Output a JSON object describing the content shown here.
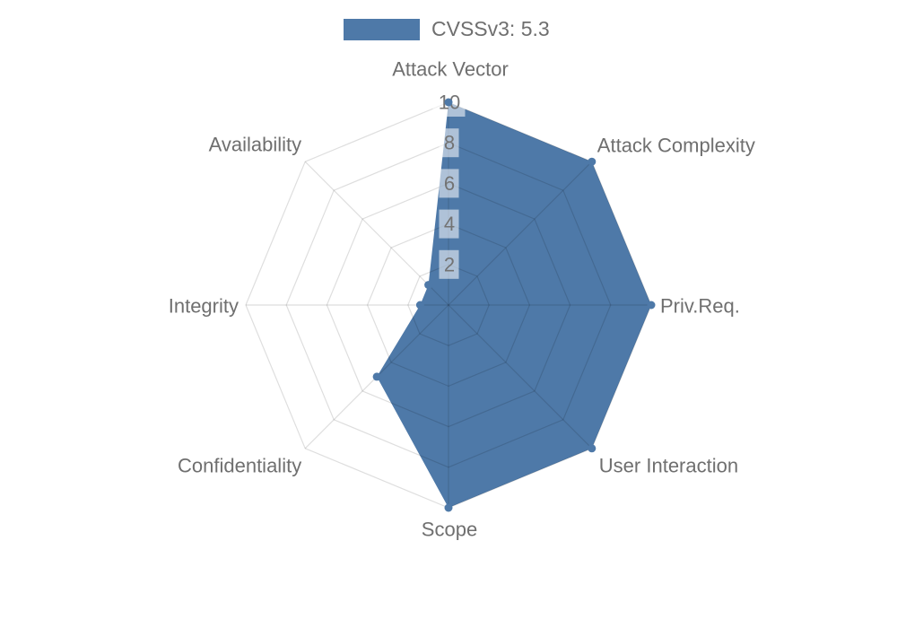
{
  "legend": {
    "label": "CVSSv3: 5.3"
  },
  "chart_data": {
    "type": "radar",
    "title": "CVSSv3: 5.3",
    "categories": [
      "Attack Vector",
      "Attack Complexity",
      "Priv.Req.",
      "User Interaction",
      "Scope",
      "Confidentiality",
      "Integrity",
      "Availability"
    ],
    "series": [
      {
        "name": "CVSSv3: 5.3",
        "values": [
          10,
          10,
          10,
          10,
          10,
          5,
          1.4,
          1.4
        ]
      }
    ],
    "radial_ticks": [
      2,
      4,
      6,
      8,
      10
    ],
    "rlim": [
      0,
      10
    ],
    "grid": true,
    "legend_position": "top-center",
    "colors": {
      "fill": "#4e79a8",
      "label_text": "#6f6f6f",
      "tick_text": "#737373",
      "tick_chip": "rgba(255,255,255,0.55)",
      "grid_line": "rgba(0,0,0,0.13)",
      "background": "#ffffff"
    }
  }
}
